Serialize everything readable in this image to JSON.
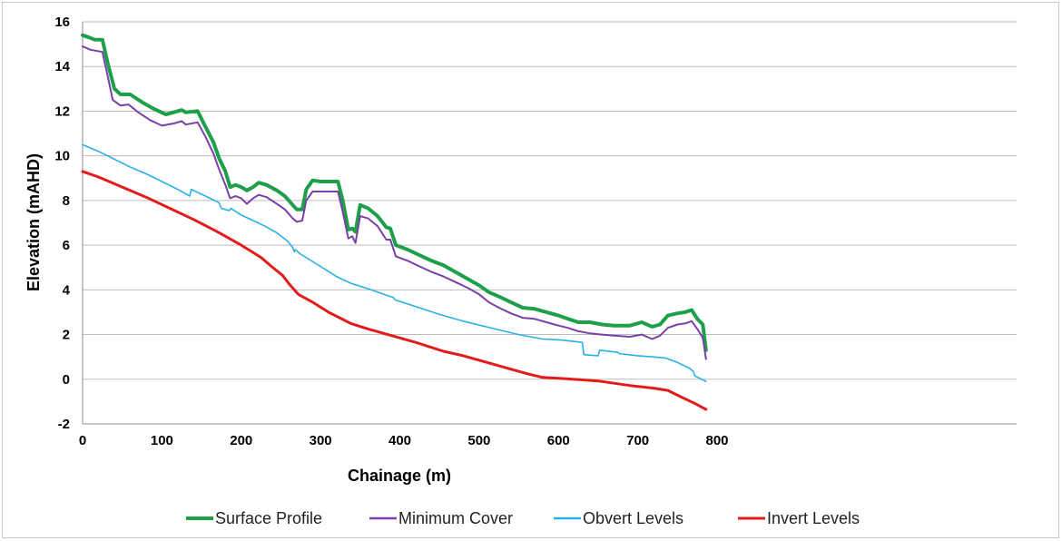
{
  "chart_data": {
    "type": "line",
    "title": "",
    "xlabel": "Chainage (m)",
    "ylabel": "Elevation (mAHD)",
    "xlim": [
      0,
      800
    ],
    "ylim": [
      -2,
      16
    ],
    "xticks": [
      0,
      100,
      200,
      300,
      400,
      500,
      600,
      700,
      800
    ],
    "yticks": [
      -2,
      0,
      2,
      4,
      6,
      8,
      10,
      12,
      14,
      16
    ],
    "grid": "horizontal",
    "legend_position": "bottom",
    "series": [
      {
        "name": "Surface Profile",
        "color": "#1ea04a",
        "width": 4,
        "points": [
          [
            0,
            15.4
          ],
          [
            8,
            15.3
          ],
          [
            15,
            15.2
          ],
          [
            25,
            15.2
          ],
          [
            32,
            14.1
          ],
          [
            40,
            13.0
          ],
          [
            48,
            12.75
          ],
          [
            60,
            12.75
          ],
          [
            75,
            12.4
          ],
          [
            90,
            12.1
          ],
          [
            105,
            11.85
          ],
          [
            115,
            11.95
          ],
          [
            125,
            12.05
          ],
          [
            130,
            11.95
          ],
          [
            145,
            12.0
          ],
          [
            155,
            11.3
          ],
          [
            165,
            10.6
          ],
          [
            172,
            9.9
          ],
          [
            180,
            9.3
          ],
          [
            186,
            8.6
          ],
          [
            193,
            8.7
          ],
          [
            200,
            8.6
          ],
          [
            207,
            8.45
          ],
          [
            215,
            8.6
          ],
          [
            222,
            8.8
          ],
          [
            232,
            8.7
          ],
          [
            245,
            8.45
          ],
          [
            255,
            8.2
          ],
          [
            265,
            7.8
          ],
          [
            270,
            7.6
          ],
          [
            277,
            7.6
          ],
          [
            282,
            8.5
          ],
          [
            290,
            8.9
          ],
          [
            300,
            8.85
          ],
          [
            322,
            8.85
          ],
          [
            328,
            8.0
          ],
          [
            335,
            6.7
          ],
          [
            340,
            6.75
          ],
          [
            344,
            6.6
          ],
          [
            350,
            7.8
          ],
          [
            360,
            7.65
          ],
          [
            372,
            7.3
          ],
          [
            383,
            6.8
          ],
          [
            388,
            6.75
          ],
          [
            395,
            6.0
          ],
          [
            410,
            5.8
          ],
          [
            425,
            5.55
          ],
          [
            440,
            5.3
          ],
          [
            455,
            5.1
          ],
          [
            470,
            4.8
          ],
          [
            485,
            4.5
          ],
          [
            500,
            4.2
          ],
          [
            512,
            3.9
          ],
          [
            525,
            3.7
          ],
          [
            540,
            3.45
          ],
          [
            555,
            3.2
          ],
          [
            570,
            3.15
          ],
          [
            585,
            3.0
          ],
          [
            600,
            2.85
          ],
          [
            612,
            2.7
          ],
          [
            625,
            2.55
          ],
          [
            640,
            2.55
          ],
          [
            655,
            2.45
          ],
          [
            670,
            2.4
          ],
          [
            690,
            2.4
          ],
          [
            705,
            2.55
          ],
          [
            718,
            2.35
          ],
          [
            728,
            2.45
          ],
          [
            738,
            2.85
          ],
          [
            750,
            2.95
          ],
          [
            760,
            3.0
          ],
          [
            768,
            3.1
          ],
          [
            775,
            2.7
          ],
          [
            782,
            2.45
          ],
          [
            786,
            1.3
          ]
        ]
      },
      {
        "name": "Minimum Cover",
        "color": "#7a3fa8",
        "width": 2,
        "points": [
          [
            0,
            14.9
          ],
          [
            10,
            14.75
          ],
          [
            25,
            14.65
          ],
          [
            32,
            13.5
          ],
          [
            38,
            12.5
          ],
          [
            48,
            12.25
          ],
          [
            58,
            12.3
          ],
          [
            70,
            11.95
          ],
          [
            85,
            11.6
          ],
          [
            100,
            11.35
          ],
          [
            115,
            11.45
          ],
          [
            125,
            11.55
          ],
          [
            130,
            11.4
          ],
          [
            145,
            11.5
          ],
          [
            155,
            10.85
          ],
          [
            165,
            10.1
          ],
          [
            172,
            9.4
          ],
          [
            180,
            8.7
          ],
          [
            186,
            8.1
          ],
          [
            193,
            8.2
          ],
          [
            200,
            8.1
          ],
          [
            207,
            7.85
          ],
          [
            215,
            8.1
          ],
          [
            222,
            8.25
          ],
          [
            232,
            8.15
          ],
          [
            245,
            7.85
          ],
          [
            255,
            7.6
          ],
          [
            265,
            7.2
          ],
          [
            270,
            7.05
          ],
          [
            277,
            7.1
          ],
          [
            282,
            8.0
          ],
          [
            290,
            8.4
          ],
          [
            300,
            8.4
          ],
          [
            322,
            8.4
          ],
          [
            328,
            7.5
          ],
          [
            335,
            6.3
          ],
          [
            340,
            6.4
          ],
          [
            344,
            6.1
          ],
          [
            350,
            7.3
          ],
          [
            360,
            7.2
          ],
          [
            372,
            6.85
          ],
          [
            383,
            6.25
          ],
          [
            388,
            6.25
          ],
          [
            395,
            5.5
          ],
          [
            410,
            5.3
          ],
          [
            425,
            5.05
          ],
          [
            440,
            4.8
          ],
          [
            455,
            4.6
          ],
          [
            470,
            4.35
          ],
          [
            485,
            4.1
          ],
          [
            500,
            3.8
          ],
          [
            512,
            3.45
          ],
          [
            525,
            3.2
          ],
          [
            540,
            2.95
          ],
          [
            555,
            2.75
          ],
          [
            570,
            2.7
          ],
          [
            585,
            2.55
          ],
          [
            600,
            2.4
          ],
          [
            612,
            2.3
          ],
          [
            625,
            2.15
          ],
          [
            640,
            2.05
          ],
          [
            655,
            2.0
          ],
          [
            670,
            1.95
          ],
          [
            690,
            1.9
          ],
          [
            705,
            2.0
          ],
          [
            718,
            1.8
          ],
          [
            728,
            1.95
          ],
          [
            738,
            2.3
          ],
          [
            750,
            2.45
          ],
          [
            760,
            2.5
          ],
          [
            768,
            2.6
          ],
          [
            775,
            2.25
          ],
          [
            782,
            1.85
          ],
          [
            786,
            0.9
          ]
        ]
      },
      {
        "name": "Obvert Levels",
        "color": "#2ab0e6",
        "width": 1.6,
        "points": [
          [
            0,
            10.5
          ],
          [
            20,
            10.2
          ],
          [
            40,
            9.85
          ],
          [
            60,
            9.5
          ],
          [
            80,
            9.2
          ],
          [
            100,
            8.85
          ],
          [
            120,
            8.5
          ],
          [
            135,
            8.2
          ],
          [
            137,
            8.5
          ],
          [
            155,
            8.2
          ],
          [
            172,
            7.9
          ],
          [
            175,
            7.65
          ],
          [
            185,
            7.55
          ],
          [
            187,
            7.65
          ],
          [
            200,
            7.35
          ],
          [
            215,
            7.1
          ],
          [
            230,
            6.85
          ],
          [
            245,
            6.55
          ],
          [
            258,
            6.2
          ],
          [
            265,
            5.9
          ],
          [
            267,
            5.7
          ],
          [
            268,
            5.8
          ],
          [
            275,
            5.6
          ],
          [
            300,
            5.05
          ],
          [
            320,
            4.6
          ],
          [
            338,
            4.3
          ],
          [
            360,
            4.05
          ],
          [
            380,
            3.8
          ],
          [
            392,
            3.65
          ],
          [
            394,
            3.55
          ],
          [
            420,
            3.25
          ],
          [
            450,
            2.9
          ],
          [
            480,
            2.6
          ],
          [
            520,
            2.25
          ],
          [
            550,
            2.0
          ],
          [
            580,
            1.8
          ],
          [
            605,
            1.75
          ],
          [
            630,
            1.65
          ],
          [
            632,
            1.1
          ],
          [
            650,
            1.05
          ],
          [
            652,
            1.3
          ],
          [
            675,
            1.2
          ],
          [
            676,
            1.15
          ],
          [
            700,
            1.05
          ],
          [
            720,
            1.0
          ],
          [
            735,
            0.95
          ],
          [
            750,
            0.75
          ],
          [
            765,
            0.5
          ],
          [
            770,
            0.35
          ],
          [
            772,
            0.15
          ],
          [
            786,
            -0.1
          ]
        ]
      },
      {
        "name": "Invert Levels",
        "color": "#e51b1b",
        "width": 3,
        "points": [
          [
            0,
            9.3
          ],
          [
            20,
            9.05
          ],
          [
            50,
            8.6
          ],
          [
            80,
            8.15
          ],
          [
            110,
            7.65
          ],
          [
            140,
            7.15
          ],
          [
            170,
            6.6
          ],
          [
            200,
            6.0
          ],
          [
            225,
            5.45
          ],
          [
            238,
            5.05
          ],
          [
            252,
            4.65
          ],
          [
            262,
            4.2
          ],
          [
            272,
            3.8
          ],
          [
            290,
            3.45
          ],
          [
            310,
            3.0
          ],
          [
            338,
            2.5
          ],
          [
            360,
            2.25
          ],
          [
            390,
            1.95
          ],
          [
            420,
            1.65
          ],
          [
            455,
            1.25
          ],
          [
            480,
            1.05
          ],
          [
            510,
            0.75
          ],
          [
            540,
            0.45
          ],
          [
            560,
            0.25
          ],
          [
            580,
            0.08
          ],
          [
            610,
            0.02
          ],
          [
            650,
            -0.08
          ],
          [
            690,
            -0.28
          ],
          [
            720,
            -0.4
          ],
          [
            738,
            -0.5
          ],
          [
            755,
            -0.8
          ],
          [
            770,
            -1.05
          ],
          [
            786,
            -1.35
          ]
        ]
      }
    ]
  }
}
